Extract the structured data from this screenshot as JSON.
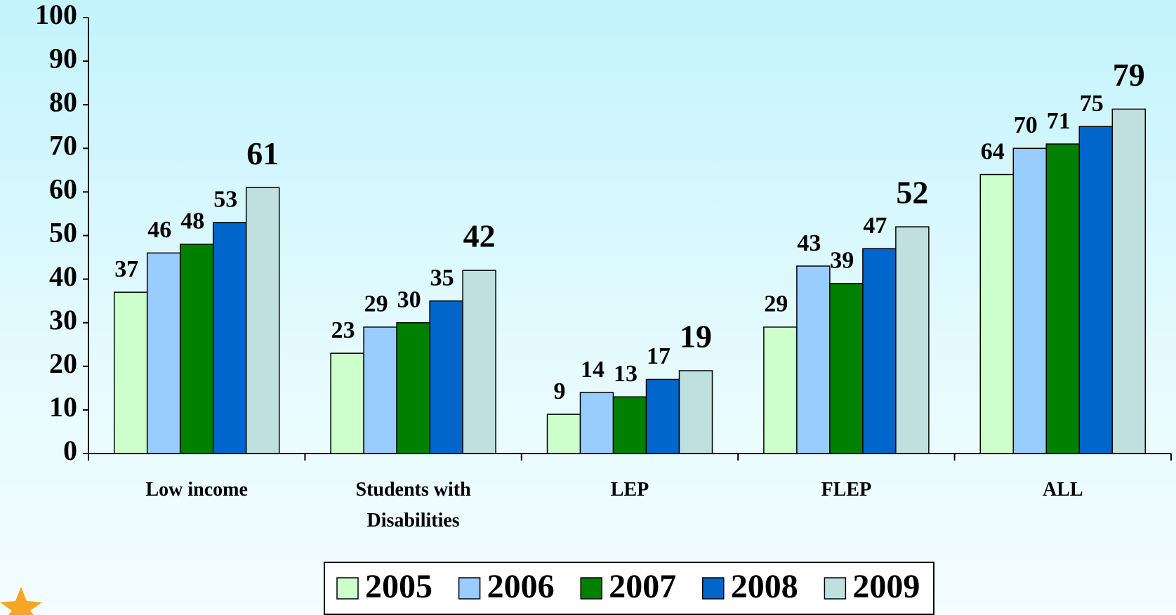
{
  "chart_data": {
    "type": "bar",
    "categories": [
      "Low income",
      "Students with Disabilities",
      "LEP",
      "FLEP",
      "ALL"
    ],
    "series": [
      {
        "name": "2005",
        "color": "#ccffcc",
        "values": [
          37,
          23,
          9,
          29,
          64
        ]
      },
      {
        "name": "2006",
        "color": "#99ccff",
        "values": [
          46,
          29,
          14,
          43,
          70
        ]
      },
      {
        "name": "2007",
        "color": "#008000",
        "values": [
          48,
          30,
          13,
          39,
          71
        ]
      },
      {
        "name": "2008",
        "color": "#0066cc",
        "values": [
          53,
          35,
          17,
          47,
          75
        ]
      },
      {
        "name": "2009",
        "color": "#c0e0e0",
        "values": [
          61,
          42,
          19,
          52,
          79
        ]
      }
    ],
    "ylim": [
      0,
      100
    ],
    "yticks": [
      0,
      10,
      20,
      30,
      40,
      50,
      60,
      70,
      80,
      90,
      100
    ],
    "legend": "bottom"
  }
}
